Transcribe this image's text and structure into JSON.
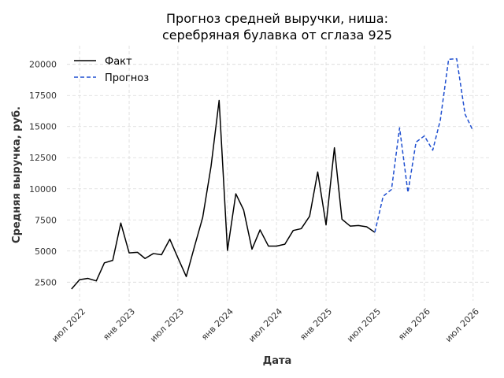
{
  "chart_data": {
    "type": "line",
    "title_lines": [
      "Прогноз средней выручки, ниша:",
      "серебряная булавка от сглаза 925"
    ],
    "xlabel": "Дата",
    "ylabel": "Средняя выручка, руб.",
    "ylim": [
      1000,
      21500
    ],
    "yticks": [
      2500,
      5000,
      7500,
      10000,
      12500,
      15000,
      17500,
      20000
    ],
    "ytick_labels": [
      "2500",
      "5000",
      "7500",
      "10000",
      "12500",
      "15000",
      "17500",
      "20000"
    ],
    "xlim": [
      "2022-05-15",
      "2026-09-01"
    ],
    "xticks": [
      "2022-07-01",
      "2023-01-01",
      "2023-07-01",
      "2024-01-01",
      "2024-07-01",
      "2025-01-01",
      "2025-07-01",
      "2026-01-01",
      "2026-07-01"
    ],
    "xtick_labels": [
      "июл 2022",
      "янв 2023",
      "июл 2023",
      "янв 2024",
      "июл 2024",
      "янв 2025",
      "июл 2025",
      "янв 2026",
      "июл 2026"
    ],
    "grid": true,
    "legend_position": "top-left",
    "series": [
      {
        "name": "Факт",
        "color": "#000000",
        "style": "solid",
        "x": [
          "2022-06-01",
          "2022-07-01",
          "2022-08-01",
          "2022-09-01",
          "2022-10-01",
          "2022-11-01",
          "2022-12-01",
          "2023-01-01",
          "2023-02-01",
          "2023-03-01",
          "2023-04-01",
          "2023-05-01",
          "2023-06-01",
          "2023-07-01",
          "2023-08-01",
          "2023-09-01",
          "2023-10-01",
          "2023-11-01",
          "2023-12-01",
          "2024-01-01",
          "2024-02-01",
          "2024-03-01",
          "2024-04-01",
          "2024-05-01",
          "2024-06-01",
          "2024-07-01",
          "2024-08-01",
          "2024-09-01",
          "2024-10-01",
          "2024-11-01",
          "2024-12-01",
          "2025-01-01",
          "2025-02-01",
          "2025-03-01",
          "2025-04-01",
          "2025-05-01",
          "2025-06-01",
          "2025-07-01"
        ],
        "y": [
          1950,
          2700,
          2800,
          2600,
          4050,
          4250,
          7250,
          4850,
          4900,
          4400,
          4800,
          4700,
          5950,
          4450,
          2950,
          5400,
          7700,
          11800,
          17100,
          5050,
          9600,
          8300,
          5150,
          6700,
          5400,
          5400,
          5550,
          6650,
          6800,
          7800,
          11350,
          7100,
          13300,
          7550,
          7000,
          7050,
          6950,
          6500
        ]
      },
      {
        "name": "Прогноз",
        "color": "#1f4fd0",
        "style": "dashed",
        "x": [
          "2025-07-01",
          "2025-08-01",
          "2025-09-01",
          "2025-10-01",
          "2025-11-01",
          "2025-12-01",
          "2026-01-01",
          "2026-02-01",
          "2026-03-01",
          "2026-04-01",
          "2026-05-01",
          "2026-06-01",
          "2026-07-01"
        ],
        "y": [
          6500,
          9400,
          9950,
          14900,
          9700,
          13750,
          14250,
          13100,
          15500,
          20400,
          20450,
          16000,
          14650
        ]
      }
    ]
  }
}
